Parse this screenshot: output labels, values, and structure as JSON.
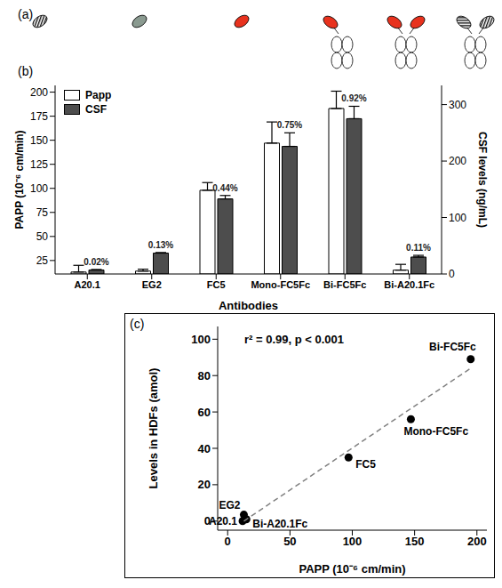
{
  "diagram": {
    "title": "(a)"
  },
  "chart_data": [
    {
      "type": "bar",
      "title": "(b)",
      "x_label": "Antibodies",
      "y_label": "PAPP (10⁻⁶ cm/min)",
      "y2_label": "CSF levels (ng/mL)",
      "categories": [
        "A20.1",
        "EG2",
        "FC5",
        "Mono-FC5Fc",
        "Bi-FC5Fc",
        "Bi-A20.1Fc"
      ],
      "series": [
        {
          "name": "Papp",
          "color": "#ffffff",
          "values": [
            13,
            14,
            98,
            147,
            183,
            15
          ],
          "errors": [
            7,
            2,
            8,
            22,
            18,
            6
          ]
        },
        {
          "name": "CSF",
          "color": "#4d4d4d",
          "axis": "y2",
          "values": [
            7,
            37,
            133,
            226,
            275,
            30
          ],
          "errors": [
            1,
            1,
            6,
            24,
            22,
            3
          ],
          "annotations": [
            "0.02%",
            "0.13%",
            "0.44%",
            "0.75%",
            "0.92%",
            "0.11%"
          ]
        }
      ],
      "ylim": [
        11,
        207
      ],
      "yticks": [
        25,
        50,
        75,
        100,
        125,
        150,
        175,
        200
      ],
      "y2lim": [
        0,
        334
      ],
      "y2ticks": [
        0,
        100,
        200,
        300
      ],
      "legend": "upper left",
      "grid": false
    },
    {
      "type": "scatter",
      "title": "(c)",
      "x_label": "PAPP (10⁻⁶ cm/min)",
      "y_label": "Levels in HDFs (amol)",
      "annotations": [
        "r² = 0.99, p < 0.001"
      ],
      "series": [
        {
          "type": "scatter",
          "x": [
            12,
            13,
            97,
            147,
            195,
            15
          ],
          "values": [
            0,
            3.5,
            35,
            56,
            89,
            1
          ],
          "labels": [
            "A20.1",
            "EG2",
            "FC5",
            "Mono-FC5Fc",
            "Bi-FC5Fc",
            "Bi-A20.1Fc"
          ],
          "color": "#000000",
          "marker": "circle"
        },
        {
          "type": "line",
          "x": [
            13,
            195
          ],
          "values": [
            0,
            84
          ],
          "color": "#808080",
          "line_style": "dashed"
        }
      ],
      "xlim": [
        -8,
        208
      ],
      "xticks": [
        0,
        50,
        100,
        150,
        200
      ],
      "ylim": [
        -5,
        107
      ],
      "yticks": [
        0,
        20,
        40,
        60,
        80,
        100
      ],
      "grid": false
    }
  ]
}
